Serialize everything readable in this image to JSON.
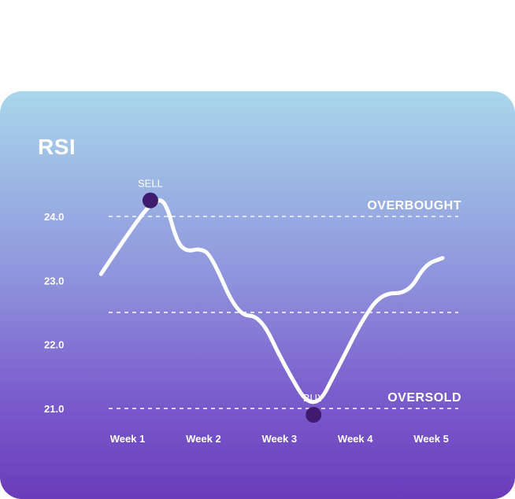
{
  "chart_data": {
    "type": "line",
    "title": "RSI",
    "xlabel": "",
    "ylabel": "",
    "categories": [
      "Week 1",
      "Week 2",
      "Week 3",
      "Week 4",
      "Week 5"
    ],
    "y_ticks": [
      24.0,
      23.0,
      22.0,
      21.0
    ],
    "y_tick_labels": [
      "24.0",
      "23.0",
      "22.0",
      "21.0"
    ],
    "ylim": [
      20.7,
      24.7
    ],
    "x_range": [
      0.65,
      5.15
    ],
    "grid": "dashed horizontal reference lines",
    "reference_lines": [
      {
        "value": 24.0,
        "label": "OVERBOUGHT"
      },
      {
        "value": 22.5,
        "label": ""
      },
      {
        "value": 21.0,
        "label": "OVERSOLD"
      }
    ],
    "series": [
      {
        "x": [
          0.65,
          1.1,
          1.35,
          1.5,
          1.65,
          1.78,
          1.95,
          2.1,
          2.45,
          2.75,
          3.05,
          3.45,
          3.8,
          4.1,
          4.35,
          4.7,
          4.92,
          5.15
        ],
        "y": [
          23.1,
          23.9,
          24.25,
          24.25,
          23.6,
          23.45,
          23.5,
          23.4,
          22.45,
          22.45,
          21.7,
          20.9,
          21.7,
          22.4,
          22.8,
          22.8,
          23.25,
          23.35
        ]
      }
    ],
    "annotations": [
      {
        "label": "SELL",
        "x": 1.3,
        "y": 24.25
      },
      {
        "label": "BUY",
        "x": 3.45,
        "y": 20.9
      }
    ],
    "colors": {
      "line": "#ffffff",
      "marker": "#3f1a6e",
      "grid": "#ffffff"
    }
  }
}
